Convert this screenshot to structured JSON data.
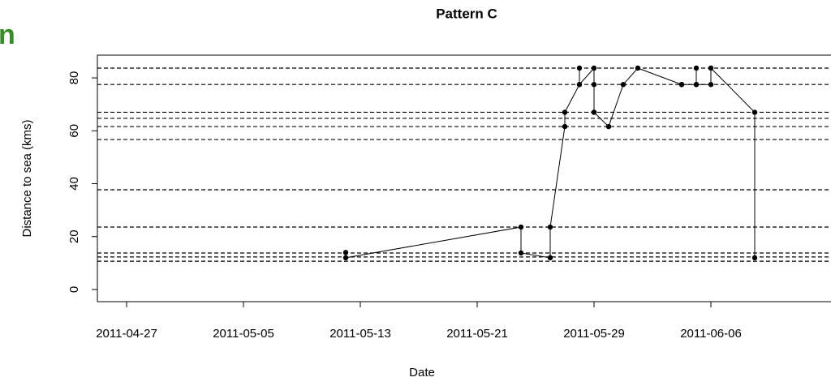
{
  "side_text": "n",
  "chart_data": {
    "type": "line",
    "title": "Pattern C",
    "x_label": "Date",
    "y_label": "Distance to sea (kms)",
    "x": [
      "2011-05-12",
      "2011-05-12",
      "2011-05-24",
      "2011-05-24",
      "2011-05-26",
      "2011-05-26",
      "2011-05-27",
      "2011-05-27",
      "2011-05-28",
      "2011-05-28",
      "2011-05-28",
      "2011-05-29",
      "2011-05-29",
      "2011-05-29",
      "2011-05-29",
      "2011-05-30",
      "2011-05-31",
      "2011-06-01",
      "2011-06-04",
      "2011-06-04",
      "2011-06-05",
      "2011-06-05",
      "2011-06-05",
      "2011-06-06",
      "2011-06-06",
      "2011-06-09",
      "2011-06-09"
    ],
    "values": [
      14,
      12,
      23.6,
      13.8,
      12,
      23.6,
      61.6,
      67,
      77.5,
      83.7,
      77.5,
      83.7,
      77.5,
      67,
      67,
      61.6,
      77.5,
      83.7,
      77.5,
      77.5,
      77.5,
      83.7,
      77.5,
      77.5,
      83.7,
      67,
      12
    ],
    "color": "#000000",
    "reference_lines": [
      83.7,
      77.5,
      67,
      64.7,
      61.6,
      56.7,
      37.7,
      23.6,
      13.8,
      12.3,
      10.7
    ],
    "xlim": [
      "2011-04-25",
      "2011-06-14"
    ],
    "xticks": [
      "2011-04-27",
      "2011-05-05",
      "2011-05-13",
      "2011-05-21",
      "2011-05-29",
      "2011-06-06"
    ],
    "ylim": [
      -4.6,
      88.6
    ],
    "yticks": [
      0,
      20,
      40,
      60,
      80
    ]
  }
}
